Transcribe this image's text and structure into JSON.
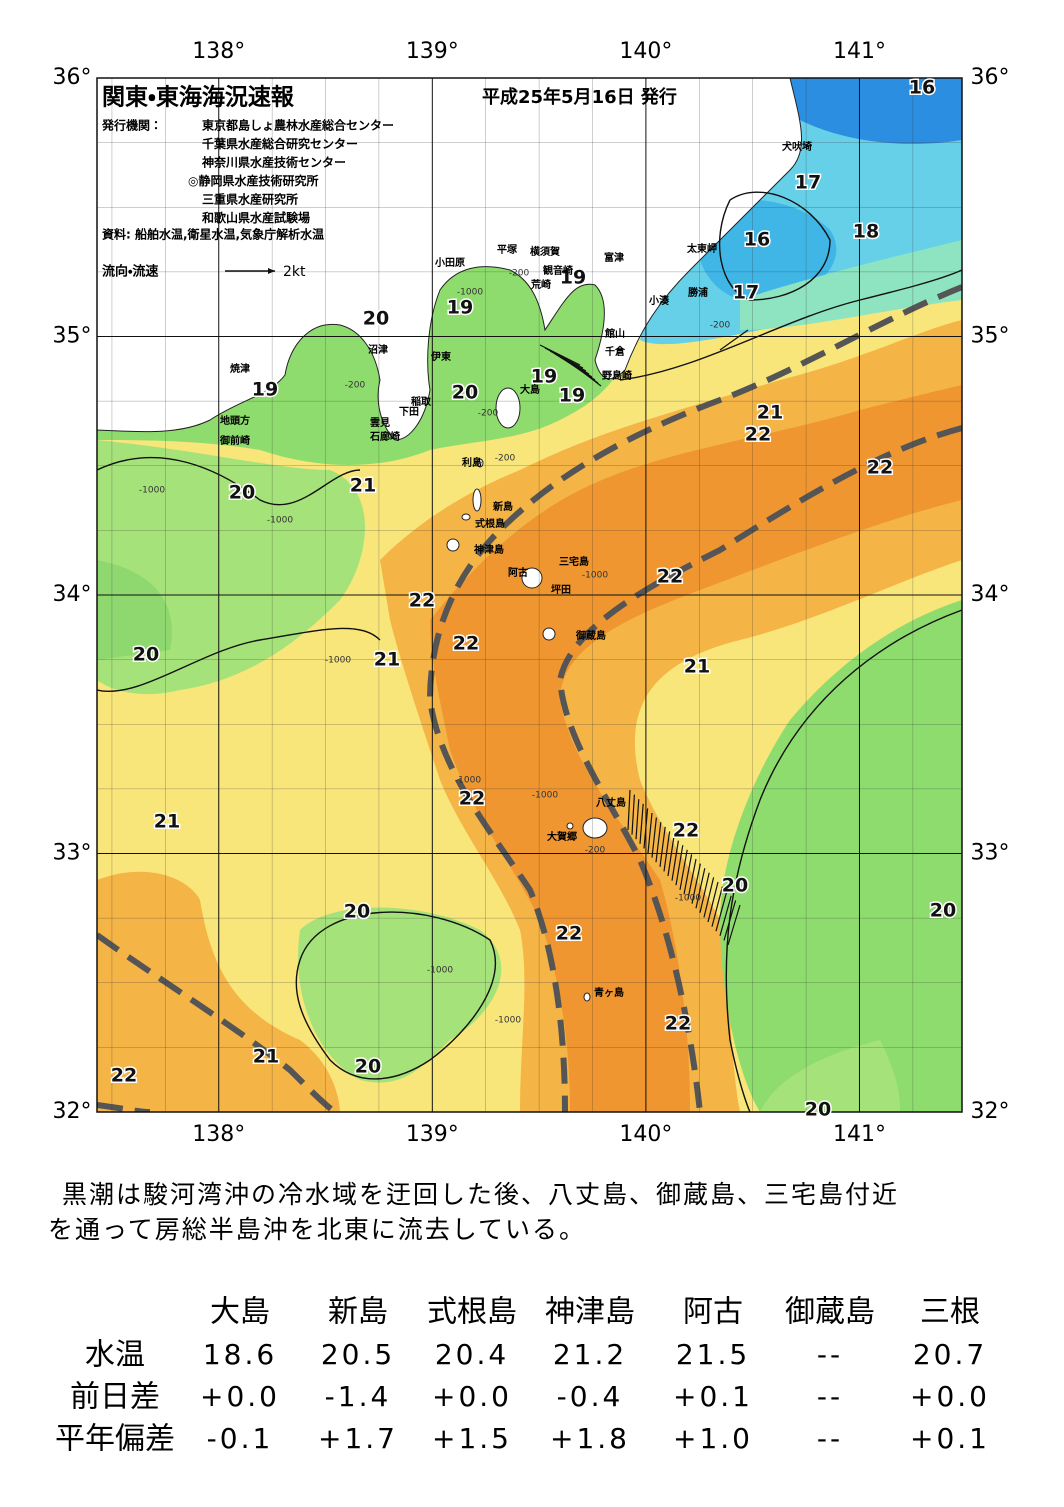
{
  "header": {
    "title": "関東・東海海況速報",
    "date": "平成25年5月16日 発行",
    "issuer_label": "発行機関：",
    "issuers": [
      "東京都島しょ農林水産総合センター",
      "千葉県水産総合研究センター",
      "神奈川県水産技術センター",
      "◎静岡県水産技術研究所",
      "三重県水産研究所",
      "和歌山県水産試験場"
    ],
    "source": "資料: 船舶水温,衛星水温,気象庁解析水温",
    "legend_label": "流向・流速",
    "legend_speed": "2kt"
  },
  "map": {
    "xlim": [
      137.43,
      141.48
    ],
    "ylim": [
      32,
      36
    ],
    "xticks": [
      {
        "value": 138,
        "label": "138°"
      },
      {
        "value": 139,
        "label": "139°"
      },
      {
        "value": 140,
        "label": "140°"
      },
      {
        "value": 141,
        "label": "141°"
      }
    ],
    "yticks": [
      {
        "value": 32,
        "label": "32°"
      },
      {
        "value": 33,
        "label": "33°"
      },
      {
        "value": 34,
        "label": "34°"
      },
      {
        "value": 35,
        "label": "35°"
      },
      {
        "value": 36,
        "label": "36°"
      }
    ],
    "contour_labels": [
      16,
      17,
      18,
      16,
      17,
      19,
      20,
      19,
      19,
      20,
      19,
      19,
      21,
      22,
      22,
      21,
      20,
      22,
      22,
      22,
      20,
      21,
      21,
      22,
      21,
      22,
      20,
      20,
      20,
      22,
      22,
      21,
      20,
      22,
      20
    ],
    "place_names": [
      "犬吠埼",
      "太東岬",
      "勝浦",
      "小湊",
      "富津",
      "観音崎",
      "横須賀",
      "平塚",
      "小田原",
      "荒崎",
      "館山",
      "千倉",
      "野島崎",
      "沼津",
      "伊東",
      "焼津",
      "稲取",
      "下田",
      "雲見",
      "石廊崎",
      "地頭方",
      "御前崎",
      "大島",
      "利島",
      "新島",
      "式根島",
      "神津島",
      "三宅島",
      "阿古",
      "坪田",
      "御蔵島",
      "八丈島",
      "大賀郷",
      "青ヶ島"
    ],
    "depth_labels": [
      "-200",
      "-1000",
      "-200",
      "-200",
      "-200",
      "-1000",
      "-1000",
      "-1000",
      "-1000",
      "-1000",
      "-1000",
      "-1000",
      "-1000",
      "-1000",
      "-200",
      "-200"
    ]
  },
  "description": [
    "黒潮は駿河湾沖の冷水域を迂回した後、八丈島、御蔵島、三宅島付近",
    "を通って房総半島沖を北東に流去している。"
  ],
  "table": {
    "columns": [
      "大島",
      "新島",
      "式根島",
      "神津島",
      "阿古",
      "御蔵島",
      "三根"
    ],
    "rows": [
      {
        "label": "水温",
        "cells": [
          "18.6",
          "20.5",
          "20.4",
          "21.2",
          "21.5",
          "--",
          "20.7"
        ]
      },
      {
        "label": "前日差",
        "cells": [
          "+0.0",
          "-1.4",
          "+0.0",
          "-0.4",
          "+0.1",
          "--",
          "+0.0"
        ]
      },
      {
        "label": "平年偏差",
        "cells": [
          "-0.1",
          "+1.7",
          "+1.5",
          "+1.8",
          "+1.0",
          "--",
          "+0.1"
        ]
      }
    ]
  }
}
